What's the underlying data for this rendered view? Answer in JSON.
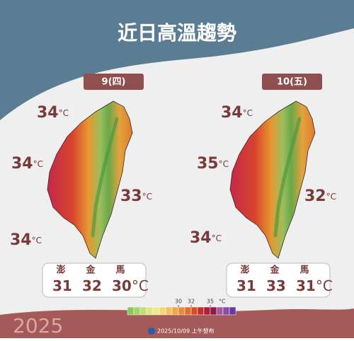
{
  "header": {
    "title": "近日高溫趨勢"
  },
  "unit": "°C",
  "panels": [
    {
      "date": "9(四)",
      "north": 34,
      "west": 34,
      "east": 33,
      "southwest": 34,
      "islands": [
        {
          "name": "澎",
          "temp": 31
        },
        {
          "name": "金",
          "temp": 32
        },
        {
          "name": "馬",
          "temp": 30
        }
      ]
    },
    {
      "date": "10(五)",
      "north": 34,
      "west": 35,
      "east": 32,
      "southwest": 34,
      "islands": [
        {
          "name": "澎",
          "temp": 31
        },
        {
          "name": "金",
          "temp": 33
        },
        {
          "name": "馬",
          "temp": 31
        }
      ]
    }
  ],
  "legend": {
    "ticks": [
      30,
      32,
      35
    ],
    "colors": [
      "#8cc65a",
      "#a6d36a",
      "#c2dc78",
      "#dde58a",
      "#f2e88e",
      "#f5d77a",
      "#f2c060",
      "#eda84a",
      "#e88c3a",
      "#e0702e",
      "#d45028",
      "#c03030",
      "#a8203c",
      "#8c1a44",
      "#a05aa0",
      "#8a4aa8",
      "#6a3aa0"
    ]
  },
  "footer": {
    "year": "2025",
    "issued": "2025/10/09 上午發布"
  }
}
